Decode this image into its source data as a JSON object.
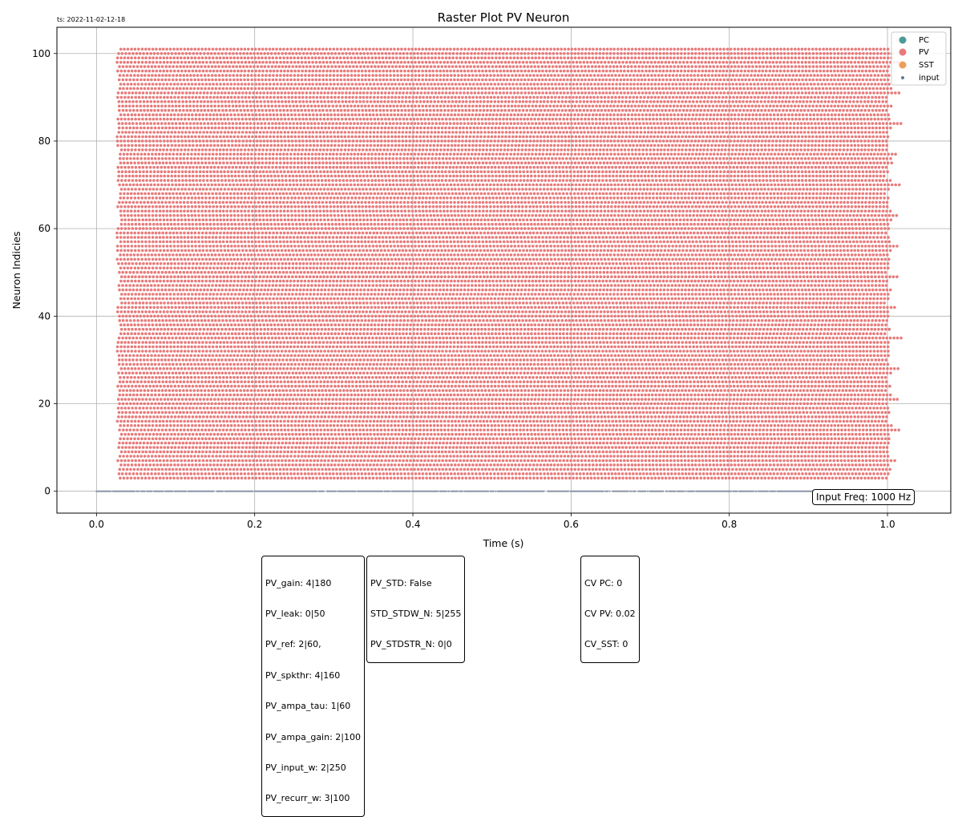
{
  "timestamp_label": "ts: 2022-11-02-12-18",
  "input_freq_label": "Input Freq: 1000 Hz",
  "param_box_1": {
    "lines": [
      "PV_gain: 4|180",
      "PV_leak: 0|50",
      "PV_ref: 2|60,",
      "PV_spkthr: 4|160",
      "PV_ampa_tau: 1|60",
      "PV_ampa_gain: 2|100",
      "PV_input_w: 2|250",
      "PV_recurr_w: 3|100"
    ]
  },
  "param_box_2": {
    "lines": [
      "PV_STD: False",
      "STD_STDW_N: 5|255",
      "PV_STDSTR_N: 0|0"
    ]
  },
  "cv_box": {
    "lines": [
      "CV PC: 0",
      "CV PV: 0.02",
      "CV_SST: 0"
    ]
  },
  "chart_data": {
    "type": "scatter",
    "title": "Raster Plot PV Neuron",
    "xlabel": "Time (s)",
    "ylabel": "Neuron Indicies",
    "xlim": [
      -0.05,
      1.08
    ],
    "ylim": [
      -5,
      106
    ],
    "xticks": [
      0.0,
      0.2,
      0.4,
      0.6,
      0.8,
      1.0
    ],
    "xtick_labels": [
      "0.0",
      "0.2",
      "0.4",
      "0.6",
      "0.8",
      "1.0"
    ],
    "yticks": [
      0,
      20,
      40,
      60,
      80,
      100
    ],
    "ytick_labels": [
      "0",
      "20",
      "40",
      "60",
      "80",
      "100"
    ],
    "grid": true,
    "legend_position": "top-right",
    "legend": [
      {
        "name": "PC",
        "color": "#4c9a9a",
        "marker": "large-dot"
      },
      {
        "name": "PV",
        "color": "#e77b7b",
        "marker": "large-dot"
      },
      {
        "name": "SST",
        "color": "#eba05a",
        "marker": "large-dot"
      },
      {
        "name": "input",
        "color": "#5f7a99",
        "marker": "small-dot"
      }
    ],
    "series": [
      {
        "name": "PV",
        "color": "#e77b7b",
        "description_values": {
          "neuron_range": [
            3,
            101
          ],
          "time_range": [
            0.025,
            1.02
          ],
          "approx_isi_s": 0.0045
        }
      },
      {
        "name": "input",
        "color": "#8a96a6",
        "description_values": {
          "neuron_index": 0,
          "time_range": [
            0.0,
            1.0
          ]
        }
      }
    ]
  }
}
